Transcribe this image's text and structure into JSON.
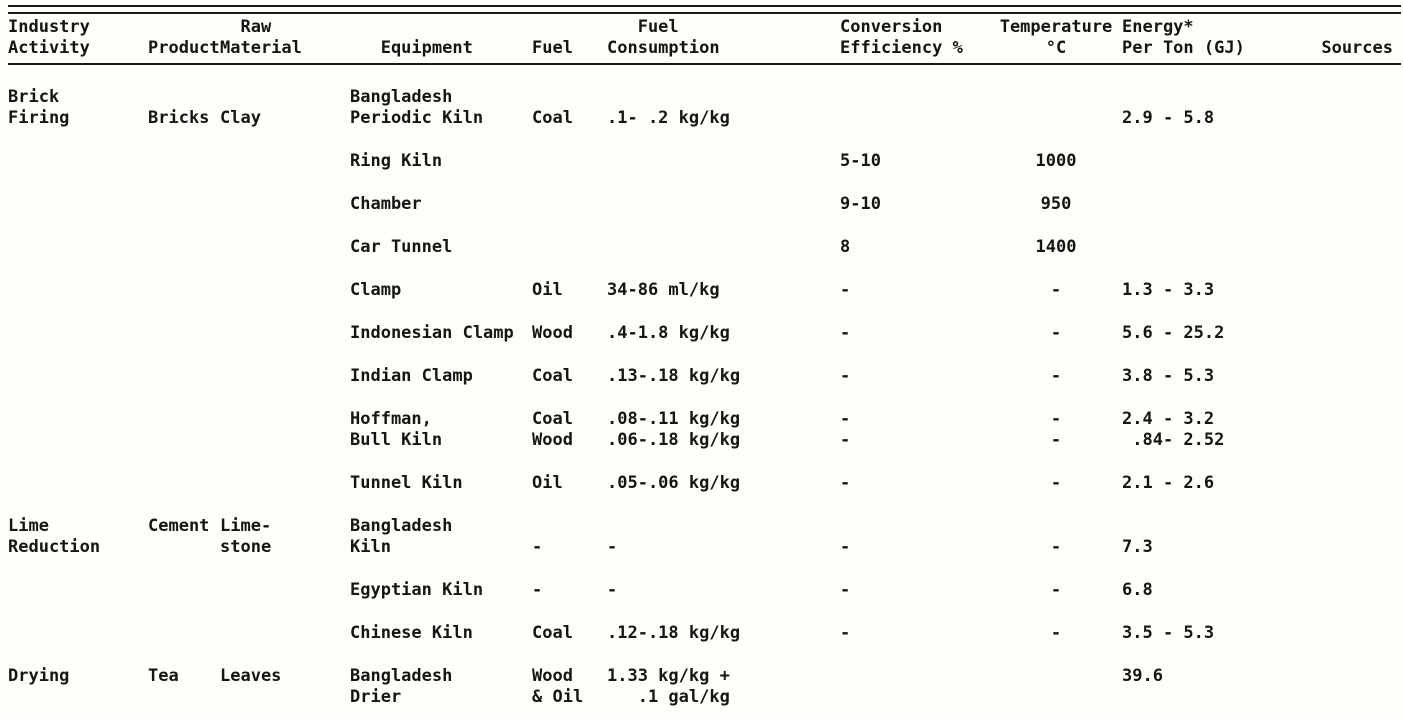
{
  "header": {
    "cols": [
      "Industry\nActivity",
      "\nProduct",
      "  Raw\nMaterial",
      "\n   Equipment",
      "\nFuel",
      "   Fuel\nConsumption",
      "Conversion\nEfficiency %",
      "Temperature\n°C",
      "Energy*\nPer Ton (GJ)",
      "\nSources"
    ]
  },
  "rows": [
    {
      "activity": "Brick\nFiring",
      "product": "\nBricks",
      "material": "\nClay",
      "equipment": "Bangladesh\nPeriodic Kiln",
      "fuel": "\nCoal",
      "consumption": "\n.1- .2 kg/kg",
      "energy": "\n2.9 - 5.8"
    },
    {
      "equipment": "Ring Kiln",
      "efficiency": "5-10",
      "temperature": "1000"
    },
    {
      "equipment": "Chamber",
      "efficiency": "9-10",
      "temperature": "950"
    },
    {
      "equipment": "Car Tunnel",
      "efficiency": "8",
      "temperature": "1400"
    },
    {
      "equipment": "Clamp",
      "fuel": "Oil",
      "consumption": "34-86 ml/kg",
      "efficiency": "-",
      "temperature": "-",
      "energy": "1.3 - 3.3"
    },
    {
      "equipment": "Indonesian Clamp",
      "fuel": "Wood",
      "consumption": ".4-1.8 kg/kg",
      "efficiency": "-",
      "temperature": "-",
      "energy": "5.6 - 25.2"
    },
    {
      "equipment": "Indian Clamp",
      "fuel": "Coal",
      "consumption": ".13-.18 kg/kg",
      "efficiency": "-",
      "temperature": "-",
      "energy": "3.8 - 5.3"
    },
    {
      "equipment": "Hoffman,\nBull Kiln",
      "fuel": "Coal\nWood",
      "consumption": ".08-.11 kg/kg\n.06-.18 kg/kg",
      "efficiency": "-\n-",
      "temperature": "-\n-",
      "energy": "2.4 - 3.2\n .84- 2.52"
    },
    {
      "equipment": "Tunnel Kiln",
      "fuel": "Oil",
      "consumption": ".05-.06 kg/kg",
      "efficiency": "-",
      "temperature": "-",
      "energy": "2.1 - 2.6"
    },
    {
      "activity": "Lime\nReduction",
      "product": "Cement",
      "material": "Lime-\nstone",
      "equipment": "Bangladesh\nKiln",
      "fuel": "\n-",
      "consumption": "\n-",
      "efficiency": "\n-",
      "temperature": "\n-",
      "energy": "\n7.3"
    },
    {
      "equipment": "Egyptian Kiln",
      "fuel": "-",
      "consumption": "-",
      "efficiency": "-",
      "temperature": "-",
      "energy": "6.8"
    },
    {
      "equipment": "Chinese Kiln",
      "fuel": "Coal",
      "consumption": ".12-.18 kg/kg",
      "efficiency": "-",
      "temperature": "-",
      "energy": "3.5 - 5.3"
    },
    {
      "activity": "Drying",
      "product": "Tea",
      "material": "Leaves",
      "equipment": "Bangladesh\nDrier",
      "fuel": "Wood\n& Oil",
      "consumption": "1.33 kg/kg +\n   .1 gal/kg",
      "energy": "39.6"
    }
  ]
}
